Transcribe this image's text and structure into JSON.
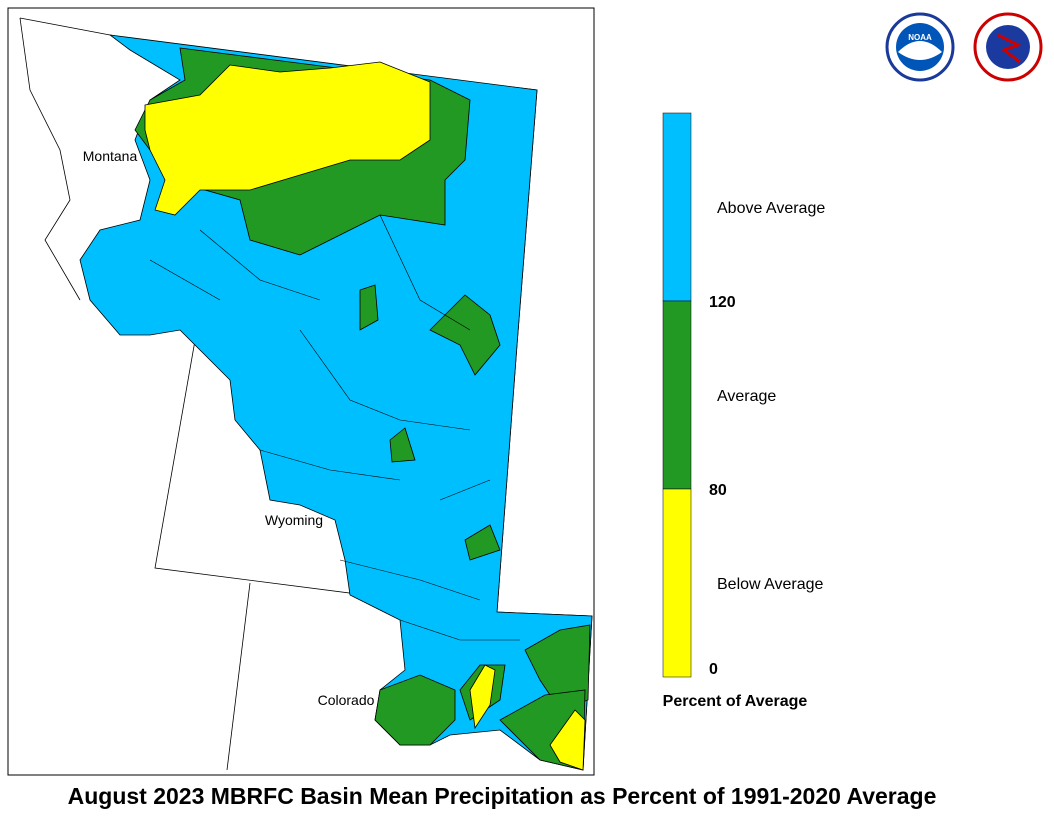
{
  "map": {
    "title": "August 2023 MBRFC Basin Mean Precipitation as Percent of 1991-2020 Average",
    "state_labels": [
      "Montana",
      "Wyoming",
      "Colorado"
    ],
    "logo_text": "NOAA"
  },
  "legend": {
    "title": "Percent of Average",
    "classes": [
      {
        "label": "Above Average",
        "color": "#00bfff"
      },
      {
        "label": "Average",
        "color": "#229922"
      },
      {
        "label": "Below Average",
        "color": "#ffff00"
      }
    ],
    "ticks": [
      120,
      80,
      0
    ]
  }
}
